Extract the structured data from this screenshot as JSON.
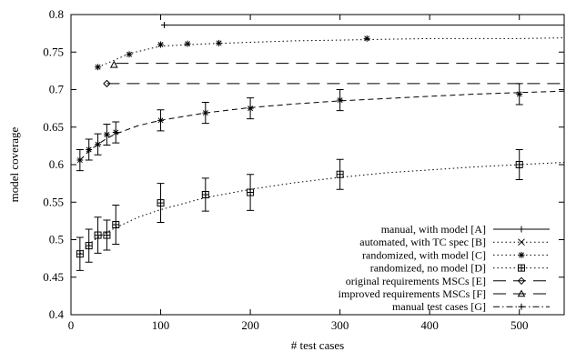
{
  "chart_data": {
    "type": "line",
    "title": "",
    "xlabel": "# test cases",
    "ylabel": "model coverage",
    "xlim": [
      0,
      550
    ],
    "ylim": [
      0.4,
      0.8
    ],
    "xticks": [
      0,
      100,
      200,
      300,
      400,
      500
    ],
    "yticks": [
      0.4,
      0.45,
      0.5,
      0.55,
      0.6,
      0.65,
      0.7,
      0.75,
      0.8
    ],
    "grid": false,
    "legend_position": "bottom-right",
    "series": [
      {
        "name": "manual, with model [A]",
        "marker": "plus",
        "line": "solid",
        "x": [
          104,
          550
        ],
        "y": [
          0.786,
          0.786
        ]
      },
      {
        "name": "automated, with TC spec [B]",
        "marker": "x",
        "line": "dotted",
        "x": [],
        "y": []
      },
      {
        "name": "randomized, with model [C]",
        "marker": "star",
        "line": "dotted",
        "x": [
          30,
          65,
          100,
          130,
          165,
          330
        ],
        "y": [
          0.73,
          0.747,
          0.76,
          0.761,
          0.762,
          0.768
        ],
        "fit_x": [
          30,
          50,
          65,
          100,
          150,
          200,
          250,
          300,
          350,
          400,
          450,
          500,
          550
        ],
        "fit_y": [
          0.73,
          0.74,
          0.748,
          0.758,
          0.761,
          0.763,
          0.765,
          0.766,
          0.767,
          0.768,
          0.768,
          0.768,
          0.769
        ]
      },
      {
        "name": "randomized, no model [D]",
        "marker": "square",
        "line": "dotted",
        "x": [
          10,
          20,
          30,
          40,
          50,
          100,
          150,
          200,
          300,
          500
        ],
        "y": [
          0.481,
          0.492,
          0.506,
          0.506,
          0.52,
          0.549,
          0.56,
          0.563,
          0.587,
          0.6
        ],
        "err": [
          0.022,
          0.022,
          0.024,
          0.02,
          0.026,
          0.026,
          0.022,
          0.024,
          0.02,
          0.02
        ],
        "fit_x": [
          10,
          20,
          30,
          40,
          50,
          75,
          100,
          150,
          200,
          250,
          300,
          350,
          400,
          450,
          500,
          550
        ],
        "fit_y": [
          0.481,
          0.494,
          0.503,
          0.51,
          0.516,
          0.53,
          0.54,
          0.556,
          0.567,
          0.576,
          0.583,
          0.589,
          0.593,
          0.597,
          0.6,
          0.603
        ]
      },
      {
        "name": "original requirements MSCs [E]",
        "marker": "diamond",
        "line": "long-dash",
        "x": [
          40,
          550
        ],
        "y": [
          0.708,
          0.708
        ],
        "marker_x": [
          40
        ],
        "marker_y": [
          0.708
        ]
      },
      {
        "name": "improved requirements MSCs [F]",
        "marker": "triangle",
        "line": "long-dash",
        "x": [
          50,
          550
        ],
        "y": [
          0.735,
          0.735
        ],
        "marker_x": [
          48
        ],
        "marker_y": [
          0.733
        ]
      },
      {
        "name": "manual test cases [G]",
        "marker": "plus",
        "line": "dashdot",
        "x": [],
        "y": []
      },
      {
        "name": "",
        "marker": "star",
        "line": "dashed",
        "x": [
          10,
          20,
          30,
          40,
          50,
          100,
          150,
          200,
          300,
          500
        ],
        "y": [
          0.606,
          0.62,
          0.627,
          0.64,
          0.643,
          0.659,
          0.669,
          0.675,
          0.686,
          0.694
        ],
        "err": [
          0.014,
          0.014,
          0.014,
          0.014,
          0.014,
          0.014,
          0.014,
          0.014,
          0.014,
          0.014
        ],
        "fit_x": [
          10,
          20,
          30,
          40,
          50,
          75,
          100,
          150,
          200,
          250,
          300,
          350,
          400,
          450,
          500,
          550
        ],
        "fit_y": [
          0.606,
          0.618,
          0.627,
          0.635,
          0.641,
          0.652,
          0.659,
          0.669,
          0.676,
          0.681,
          0.685,
          0.688,
          0.691,
          0.694,
          0.696,
          0.698
        ]
      }
    ]
  }
}
